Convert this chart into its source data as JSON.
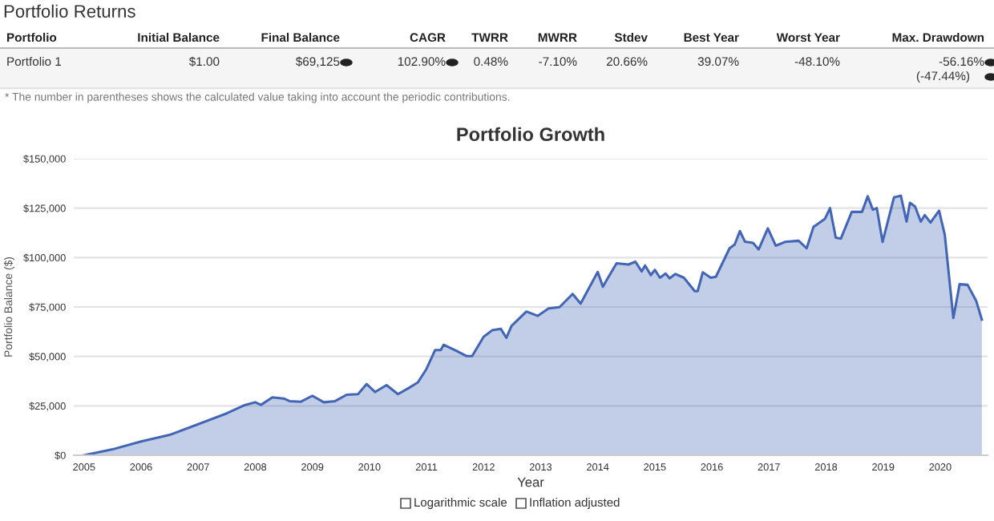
{
  "chart_data": {
    "type": "area",
    "title": "Portfolio Growth",
    "xlabel": "Year",
    "ylabel": "Portfolio Balance ($)",
    "x": [
      2005,
      2005.5,
      2006,
      2006.5,
      2007,
      2007.5,
      2007.8,
      2008,
      2008.1,
      2008.3,
      2008.5,
      2008.6,
      2008.8,
      2009,
      2009.2,
      2009.4,
      2009.6,
      2009.8,
      2009.95,
      2010.1,
      2010.3,
      2010.5,
      2010.7,
      2010.85,
      2011,
      2011.15,
      2011.25,
      2011.3,
      2011.5,
      2011.7,
      2011.8,
      2012,
      2012.15,
      2012.3,
      2012.4,
      2012.49,
      2012.75,
      2012.95,
      2013.14,
      2013.33,
      2013.56,
      2013.7,
      2014.0,
      2014.09,
      2014.18,
      2014.33,
      2014.54,
      2014.66,
      2014.77,
      2014.83,
      2014.93,
      2015.0,
      2015.09,
      2015.19,
      2015.26,
      2015.36,
      2015.51,
      2015.7,
      2015.75,
      2015.84,
      2015.98,
      2016.07,
      2016.31,
      2016.4,
      2016.49,
      2016.58,
      2016.72,
      2016.82,
      2016.98,
      2017.12,
      2017.28,
      2017.52,
      2017.66,
      2017.78,
      2017.98,
      2018.07,
      2018.17,
      2018.26,
      2018.45,
      2018.63,
      2018.73,
      2018.82,
      2018.89,
      2018.99,
      2019.19,
      2019.31,
      2019.41,
      2019.47,
      2019.56,
      2019.66,
      2019.73,
      2019.83,
      2019.98,
      2020.08,
      2020.23,
      2020.34,
      2020.48,
      2020.59,
      2020.63,
      2020.73
    ],
    "series": [
      {
        "color": "#4266b5",
        "values": [
          0,
          3000,
          7000,
          10300,
          15700,
          21200,
          25200,
          26800,
          25500,
          29300,
          28700,
          27400,
          27100,
          30100,
          26800,
          27400,
          30600,
          30900,
          36000,
          32000,
          35500,
          30900,
          34200,
          36900,
          43700,
          53200,
          53200,
          55900,
          53200,
          50200,
          50200,
          59900,
          63200,
          64000,
          59400,
          65400,
          72700,
          70500,
          74300,
          74900,
          81600,
          76700,
          92700,
          85200,
          89800,
          97100,
          96500,
          97900,
          93000,
          96000,
          91100,
          93800,
          89800,
          91900,
          89500,
          91700,
          89800,
          83000,
          83000,
          92500,
          89800,
          90300,
          104700,
          106600,
          113400,
          108000,
          107400,
          104100,
          114800,
          106000,
          107900,
          108500,
          104700,
          115500,
          119600,
          125000,
          110100,
          109600,
          123100,
          123100,
          131000,
          124200,
          125000,
          107900,
          130400,
          131300,
          118200,
          127700,
          125800,
          118200,
          121500,
          117700,
          123700,
          111500,
          69400,
          86500,
          86200,
          80300,
          78100,
          68600
        ]
      }
    ],
    "xlim": [
      2004.82,
      2020.83
    ],
    "xticks": [
      2005,
      2006,
      2007,
      2008,
      2009,
      2010,
      2011,
      2012,
      2013,
      2014,
      2015,
      2016,
      2017,
      2018,
      2019,
      2020
    ],
    "ylim": [
      0,
      150000
    ],
    "yticks": [
      {
        "value": 0,
        "label": "$0"
      },
      {
        "value": 25000,
        "label": "$25,000"
      },
      {
        "value": 50000,
        "label": "$50,000"
      },
      {
        "value": 75000,
        "label": "$75,000"
      },
      {
        "value": 100000,
        "label": "$100,000"
      },
      {
        "value": 125000,
        "label": "$125,000"
      },
      {
        "value": 150000,
        "label": "$150,000"
      }
    ],
    "grid": "y",
    "annotations": [
      "Portfolio Returns",
      "Portfolio",
      "Initial Balance",
      "Final Balance",
      "CAGR",
      "TWRR",
      "MWRR",
      "Stdev",
      "Best Year",
      "Worst Year",
      "Max. Drawdown",
      "Portfolio 1",
      "$1.00",
      "$69,125",
      "102.90%",
      "0.48%",
      "-7.10%",
      "20.66%",
      "39.07%",
      "-48.10%",
      "-56.16%",
      "(-47.44%)",
      "* The number in parentheses shows the calculated value taking into account the periodic contributions.",
      "Logarithmic scale",
      "Inflation adjusted"
    ]
  }
}
